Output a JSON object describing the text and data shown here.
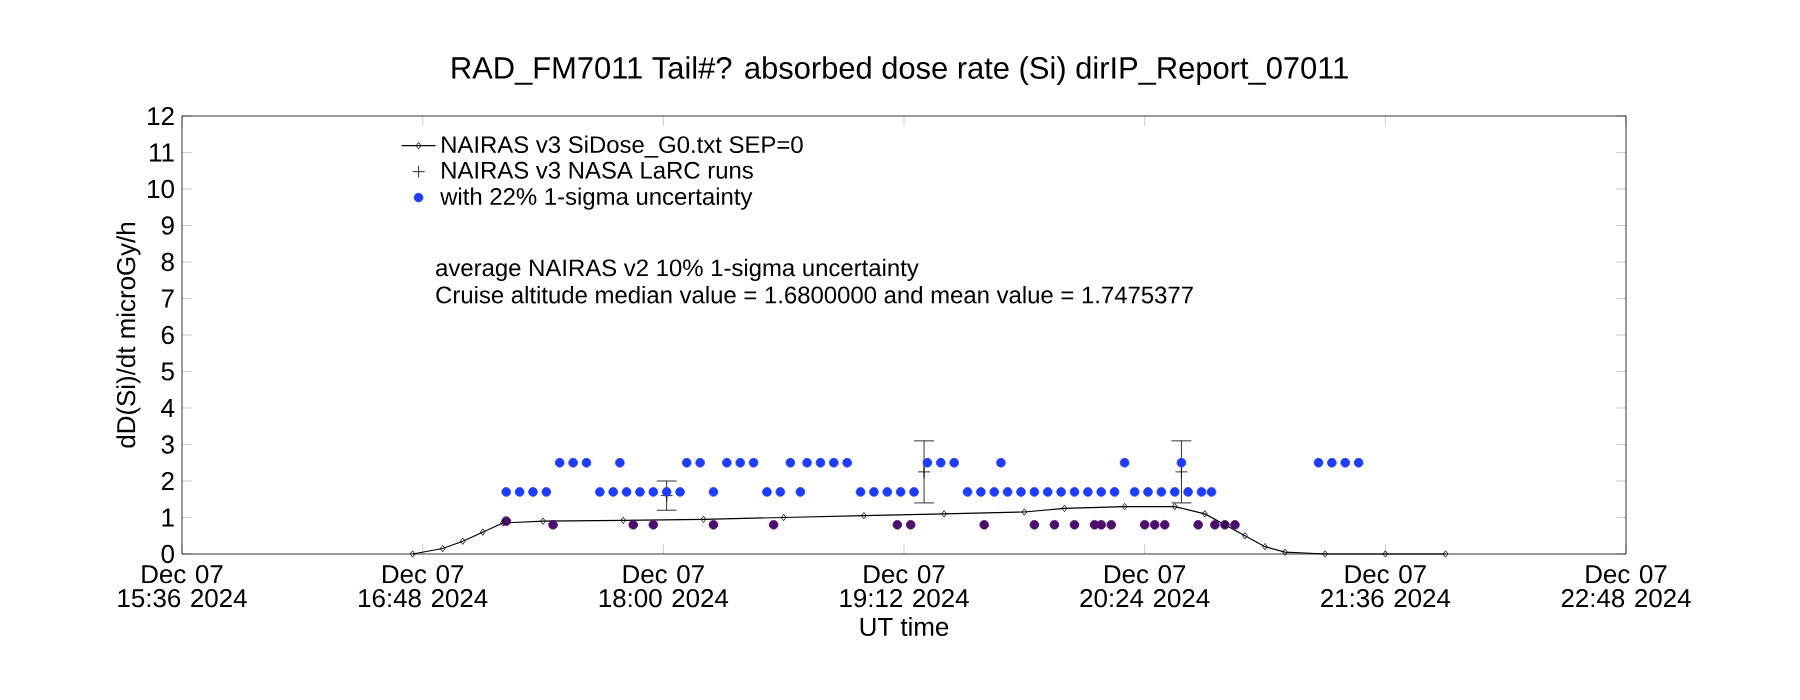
{
  "chart_data": {
    "type": "scatter",
    "title": "RAD_FM7011  Tail#? absorbed dose rate (Si) dirIP_Report_07011",
    "xlabel": "UT time",
    "ylabel": "dD(Si)/dt microGy/h",
    "xlim": [
      "2024-12-07T15:36",
      "2024-12-07T22:48"
    ],
    "xticks": [
      {
        "value": "2024-12-07T15:36",
        "label": "Dec 07 15:36 2024"
      },
      {
        "value": "2024-12-07T16:48",
        "label": "Dec 07 16:48 2024"
      },
      {
        "value": "2024-12-07T18:00",
        "label": "Dec 07 18:00 2024"
      },
      {
        "value": "2024-12-07T19:12",
        "label": "Dec 07 19:12 2024"
      },
      {
        "value": "2024-12-07T20:24",
        "label": "Dec 07 20:24 2024"
      },
      {
        "value": "2024-12-07T21:36",
        "label": "Dec 07 21:36 2024"
      },
      {
        "value": "2024-12-07T22:48",
        "label": "Dec 07 22:48 2024"
      }
    ],
    "ylim": [
      0,
      12
    ],
    "yticks": [
      0,
      1,
      2,
      3,
      4,
      5,
      6,
      7,
      8,
      9,
      10,
      11,
      12
    ],
    "legend": "top left",
    "annotations": [
      "average NAIRAS v2 10% 1-sigma uncertainty",
      "Cruise altitude median value = 1.6800000 and mean value = 1.7475377"
    ],
    "series": [
      {
        "name": "NAIRAS v3 SiDose_G0.txt SEP=0",
        "type": "line",
        "marker": "diamond",
        "color": "#000000",
        "x": [
          "2024-12-07T16:45",
          "2024-12-07T16:54",
          "2024-12-07T17:00",
          "2024-12-07T17:06",
          "2024-12-07T17:12",
          "2024-12-07T17:24",
          "2024-12-07T17:48",
          "2024-12-07T18:12",
          "2024-12-07T18:36",
          "2024-12-07T19:00",
          "2024-12-07T19:24",
          "2024-12-07T19:48",
          "2024-12-07T20:00",
          "2024-12-07T20:18",
          "2024-12-07T20:33",
          "2024-12-07T20:42",
          "2024-12-07T20:48",
          "2024-12-07T20:54",
          "2024-12-07T21:00",
          "2024-12-07T21:06",
          "2024-12-07T21:18",
          "2024-12-07T21:36",
          "2024-12-07T21:54"
        ],
        "values": [
          0,
          0.15,
          0.35,
          0.6,
          0.85,
          0.9,
          0.92,
          0.95,
          1.0,
          1.05,
          1.1,
          1.15,
          1.25,
          1.3,
          1.3,
          1.1,
          0.8,
          0.5,
          0.2,
          0.05,
          0,
          0,
          0
        ]
      },
      {
        "name": "NAIRAS v3 NASA LaRC runs",
        "marker": "cross",
        "color": "#000000",
        "x": [
          "2024-12-07T18:01",
          "2024-12-07T19:18",
          "2024-12-07T20:35"
        ],
        "values": [
          1.6,
          2.25,
          2.25
        ],
        "errors": [
          0.4,
          0.85,
          0.85
        ]
      },
      {
        "name": "with 22% 1-sigma uncertainty",
        "marker": "circle",
        "color": "#1e3cff",
        "x": [
          "2024-12-07T17:13",
          "2024-12-07T17:17",
          "2024-12-07T17:21",
          "2024-12-07T17:25",
          "2024-12-07T17:29",
          "2024-12-07T17:33",
          "2024-12-07T17:37",
          "2024-12-07T17:41",
          "2024-12-07T17:45",
          "2024-12-07T17:47",
          "2024-12-07T17:49",
          "2024-12-07T17:53",
          "2024-12-07T17:57",
          "2024-12-07T18:01",
          "2024-12-07T18:05",
          "2024-12-07T18:07",
          "2024-12-07T18:11",
          "2024-12-07T18:15",
          "2024-12-07T18:19",
          "2024-12-07T18:23",
          "2024-12-07T18:27",
          "2024-12-07T18:31",
          "2024-12-07T18:35",
          "2024-12-07T18:38",
          "2024-12-07T18:41",
          "2024-12-07T18:43",
          "2024-12-07T18:47",
          "2024-12-07T18:51",
          "2024-12-07T18:55",
          "2024-12-07T18:59",
          "2024-12-07T19:03",
          "2024-12-07T19:07",
          "2024-12-07T19:11",
          "2024-12-07T19:15",
          "2024-12-07T19:19",
          "2024-12-07T19:23",
          "2024-12-07T19:27",
          "2024-12-07T19:31",
          "2024-12-07T19:35",
          "2024-12-07T19:39",
          "2024-12-07T19:41",
          "2024-12-07T19:43",
          "2024-12-07T19:47",
          "2024-12-07T19:51",
          "2024-12-07T19:55",
          "2024-12-07T19:59",
          "2024-12-07T20:03",
          "2024-12-07T20:07",
          "2024-12-07T20:11",
          "2024-12-07T20:15",
          "2024-12-07T20:18",
          "2024-12-07T20:21",
          "2024-12-07T20:25",
          "2024-12-07T20:29",
          "2024-12-07T20:33",
          "2024-12-07T20:35",
          "2024-12-07T20:37",
          "2024-12-07T20:41",
          "2024-12-07T20:44",
          "2024-12-07T21:16",
          "2024-12-07T21:20",
          "2024-12-07T21:24",
          "2024-12-07T21:28"
        ],
        "values": [
          1.7,
          1.7,
          1.7,
          1.7,
          2.5,
          2.5,
          2.5,
          1.7,
          1.7,
          2.5,
          1.7,
          1.7,
          1.7,
          1.7,
          1.7,
          2.5,
          2.5,
          1.7,
          2.5,
          2.5,
          2.5,
          1.7,
          1.7,
          2.5,
          1.7,
          2.5,
          2.5,
          2.5,
          2.5,
          1.7,
          1.7,
          1.7,
          1.7,
          1.7,
          2.5,
          2.5,
          2.5,
          1.7,
          1.7,
          1.7,
          2.5,
          1.7,
          1.7,
          1.7,
          1.7,
          1.7,
          1.7,
          1.7,
          1.7,
          1.7,
          2.5,
          1.7,
          1.7,
          1.7,
          1.7,
          2.5,
          1.7,
          1.7,
          1.7,
          2.5,
          2.5,
          2.5,
          2.5
        ]
      },
      {
        "marker": "circle",
        "color": "#4b0f6e",
        "x": [
          "2024-12-07T17:13",
          "2024-12-07T17:27",
          "2024-12-07T17:51",
          "2024-12-07T17:57",
          "2024-12-07T18:15",
          "2024-12-07T18:33",
          "2024-12-07T19:10",
          "2024-12-07T19:14",
          "2024-12-07T19:36",
          "2024-12-07T19:51",
          "2024-12-07T19:57",
          "2024-12-07T20:03",
          "2024-12-07T20:09",
          "2024-12-07T20:11",
          "2024-12-07T20:14",
          "2024-12-07T20:24",
          "2024-12-07T20:27",
          "2024-12-07T20:30",
          "2024-12-07T20:40",
          "2024-12-07T20:45",
          "2024-12-07T20:48",
          "2024-12-07T20:51"
        ],
        "values": [
          0.9,
          0.8,
          0.8,
          0.8,
          0.8,
          0.8,
          0.8,
          0.8,
          0.8,
          0.8,
          0.8,
          0.8,
          0.8,
          0.8,
          0.8,
          0.8,
          0.8,
          0.8,
          0.8,
          0.8,
          0.8,
          0.8
        ]
      }
    ]
  }
}
